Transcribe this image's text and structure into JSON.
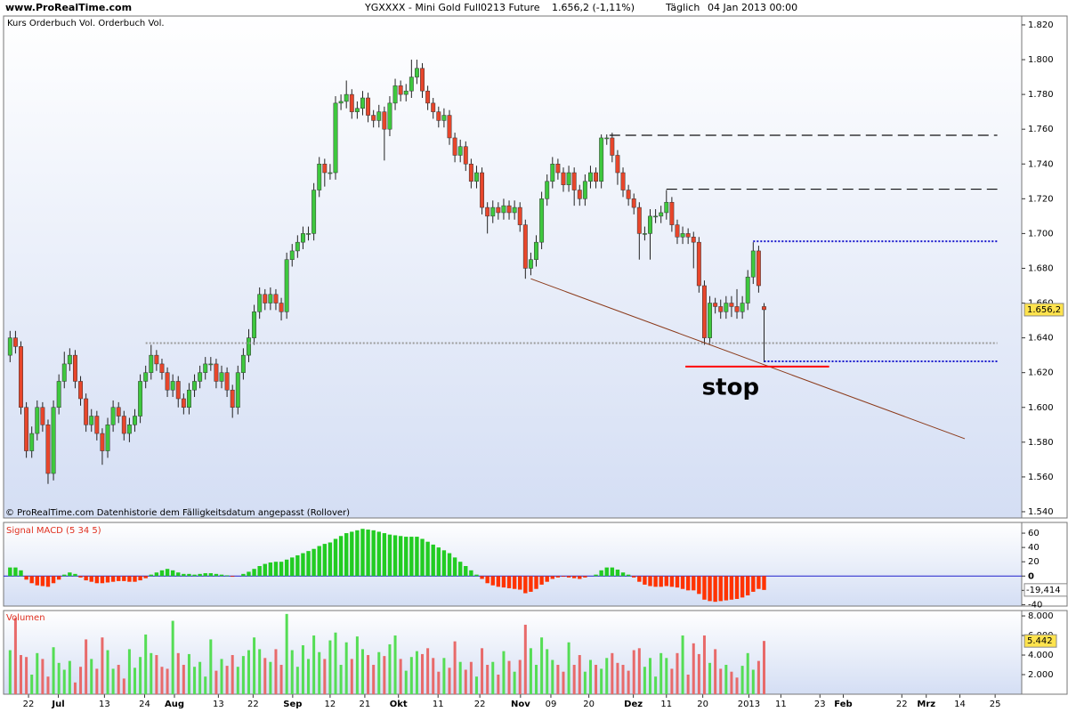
{
  "header": {
    "site": "www.ProRealTime.com",
    "title": "YGXXXX - Mini Gold Full0213 Future",
    "quote": "1.656,2 (-1,11%)",
    "period": "Täglich",
    "date": "04 Jan 2013 00:00"
  },
  "chart_data": [
    {
      "type": "candlestick",
      "label": "Kurs Orderbuch Vol. Orderbuch Vol.",
      "footnote": "© ProRealTime.com  Datenhistorie dem Fälligkeitsdatum angepasst (Rollover)",
      "up_color": "#3ec83e",
      "down_color": "#e8462b",
      "open": [
        1.63,
        1.64,
        1.635,
        1.6,
        1.575,
        1.585,
        1.6,
        1.59,
        1.562,
        1.6,
        1.615,
        1.625,
        1.63,
        1.615,
        1.605,
        1.59,
        1.595,
        1.585,
        1.575,
        1.59,
        1.6,
        1.595,
        1.585,
        1.59,
        1.595,
        1.615,
        1.62,
        1.63,
        1.625,
        1.62,
        1.61,
        1.615,
        1.605,
        1.6,
        1.61,
        1.615,
        1.62,
        1.625,
        1.625,
        1.615,
        1.62,
        1.61,
        1.6,
        1.62,
        1.63,
        1.64,
        1.655,
        1.665,
        1.66,
        1.665,
        1.66,
        1.655,
        1.685,
        1.69,
        1.695,
        1.7,
        1.7,
        1.725,
        1.74,
        1.735,
        1.735,
        1.775,
        1.776,
        1.78,
        1.77,
        1.772,
        1.778,
        1.768,
        1.765,
        1.77,
        1.76,
        1.775,
        1.785,
        1.78,
        1.782,
        1.79,
        1.795,
        1.782,
        1.775,
        1.77,
        1.765,
        1.768,
        1.755,
        1.745,
        1.75,
        1.74,
        1.73,
        1.735,
        1.715,
        1.71,
        1.715,
        1.712,
        1.716,
        1.712,
        1.715,
        1.705,
        1.68,
        1.685,
        1.695,
        1.72,
        1.73,
        1.74,
        1.735,
        1.728,
        1.735,
        1.725,
        1.72,
        1.73,
        1.735,
        1.73,
        1.755,
        1.755,
        1.745,
        1.735,
        1.725,
        1.72,
        1.715,
        1.7,
        1.7,
        1.71,
        1.71,
        1.712,
        1.718,
        1.705,
        1.698,
        1.7,
        1.698,
        1.695,
        1.67,
        1.64,
        1.66,
        1.658,
        1.655,
        1.66,
        1.658,
        1.655,
        1.66,
        1.675,
        1.69,
        1.658
      ],
      "high": [
        1.644,
        1.644,
        1.638,
        1.603,
        1.589,
        1.604,
        1.603,
        1.593,
        1.604,
        1.619,
        1.632,
        1.634,
        1.633,
        1.618,
        1.608,
        1.599,
        1.598,
        1.588,
        1.594,
        1.604,
        1.603,
        1.598,
        1.594,
        1.599,
        1.619,
        1.624,
        1.636,
        1.633,
        1.628,
        1.623,
        1.619,
        1.618,
        1.608,
        1.614,
        1.619,
        1.624,
        1.629,
        1.629,
        1.628,
        1.624,
        1.623,
        1.613,
        1.624,
        1.634,
        1.645,
        1.659,
        1.669,
        1.668,
        1.669,
        1.668,
        1.663,
        1.689,
        1.694,
        1.699,
        1.704,
        1.704,
        1.729,
        1.744,
        1.743,
        1.74,
        1.779,
        1.78,
        1.788,
        1.783,
        1.776,
        1.782,
        1.781,
        1.771,
        1.774,
        1.773,
        1.779,
        1.789,
        1.788,
        1.786,
        1.8,
        1.8,
        1.798,
        1.785,
        1.778,
        1.773,
        1.772,
        1.771,
        1.758,
        1.754,
        1.753,
        1.743,
        1.739,
        1.738,
        1.718,
        1.719,
        1.718,
        1.72,
        1.719,
        1.719,
        1.718,
        1.708,
        1.689,
        1.699,
        1.724,
        1.734,
        1.744,
        1.743,
        1.738,
        1.739,
        1.738,
        1.728,
        1.734,
        1.739,
        1.738,
        1.757,
        1.757,
        1.758,
        1.748,
        1.738,
        1.728,
        1.723,
        1.718,
        1.704,
        1.714,
        1.714,
        1.716,
        1.725,
        1.721,
        1.708,
        1.704,
        1.703,
        1.701,
        1.698,
        1.673,
        1.664,
        1.663,
        1.662,
        1.664,
        1.664,
        1.668,
        1.664,
        1.679,
        1.695,
        1.693,
        1.66
      ],
      "low": [
        1.626,
        1.631,
        1.596,
        1.571,
        1.571,
        1.581,
        1.586,
        1.556,
        1.558,
        1.596,
        1.611,
        1.621,
        1.611,
        1.601,
        1.586,
        1.586,
        1.581,
        1.567,
        1.571,
        1.586,
        1.591,
        1.581,
        1.58,
        1.586,
        1.591,
        1.611,
        1.616,
        1.621,
        1.616,
        1.606,
        1.606,
        1.6,
        1.596,
        1.596,
        1.606,
        1.611,
        1.616,
        1.621,
        1.611,
        1.611,
        1.606,
        1.594,
        1.596,
        1.616,
        1.626,
        1.636,
        1.651,
        1.656,
        1.656,
        1.656,
        1.65,
        1.651,
        1.681,
        1.686,
        1.691,
        1.696,
        1.696,
        1.721,
        1.727,
        1.731,
        1.731,
        1.771,
        1.772,
        1.766,
        1.766,
        1.768,
        1.764,
        1.761,
        1.761,
        1.742,
        1.756,
        1.771,
        1.776,
        1.776,
        1.778,
        1.786,
        1.778,
        1.771,
        1.766,
        1.761,
        1.761,
        1.751,
        1.741,
        1.741,
        1.736,
        1.726,
        1.726,
        1.711,
        1.7,
        1.706,
        1.708,
        1.708,
        1.708,
        1.708,
        1.701,
        1.674,
        1.676,
        1.681,
        1.691,
        1.716,
        1.726,
        1.731,
        1.724,
        1.724,
        1.716,
        1.716,
        1.716,
        1.726,
        1.726,
        1.726,
        1.751,
        1.741,
        1.728,
        1.721,
        1.716,
        1.711,
        1.685,
        1.696,
        1.685,
        1.706,
        1.706,
        1.708,
        1.701,
        1.694,
        1.694,
        1.694,
        1.68,
        1.666,
        1.636,
        1.636,
        1.654,
        1.651,
        1.651,
        1.652,
        1.651,
        1.651,
        1.656,
        1.671,
        1.666,
        1.626
      ],
      "close": [
        1.64,
        1.635,
        1.6,
        1.575,
        1.585,
        1.6,
        1.59,
        1.562,
        1.6,
        1.615,
        1.625,
        1.63,
        1.615,
        1.605,
        1.59,
        1.595,
        1.585,
        1.575,
        1.59,
        1.6,
        1.595,
        1.585,
        1.59,
        1.595,
        1.615,
        1.62,
        1.63,
        1.625,
        1.62,
        1.61,
        1.615,
        1.605,
        1.6,
        1.61,
        1.615,
        1.62,
        1.625,
        1.625,
        1.615,
        1.62,
        1.61,
        1.6,
        1.62,
        1.63,
        1.64,
        1.655,
        1.665,
        1.66,
        1.665,
        1.66,
        1.655,
        1.685,
        1.69,
        1.695,
        1.7,
        1.7,
        1.725,
        1.74,
        1.735,
        1.735,
        1.775,
        1.776,
        1.78,
        1.77,
        1.772,
        1.778,
        1.768,
        1.765,
        1.77,
        1.76,
        1.775,
        1.785,
        1.78,
        1.782,
        1.79,
        1.795,
        1.782,
        1.775,
        1.77,
        1.765,
        1.768,
        1.755,
        1.745,
        1.75,
        1.74,
        1.73,
        1.735,
        1.715,
        1.71,
        1.715,
        1.712,
        1.716,
        1.712,
        1.715,
        1.705,
        1.68,
        1.685,
        1.695,
        1.72,
        1.73,
        1.74,
        1.735,
        1.728,
        1.735,
        1.725,
        1.72,
        1.73,
        1.735,
        1.73,
        1.755,
        1.755,
        1.745,
        1.735,
        1.725,
        1.72,
        1.715,
        1.7,
        1.7,
        1.71,
        1.71,
        1.712,
        1.718,
        1.705,
        1.698,
        1.7,
        1.698,
        1.695,
        1.67,
        1.64,
        1.66,
        1.658,
        1.655,
        1.66,
        1.658,
        1.655,
        1.66,
        1.675,
        1.69,
        1.67,
        1.6562
      ],
      "last_label": "1.656,2",
      "xlim": [
        -1.2,
        186.5
      ],
      "xticks": [
        {
          "value": 3.4,
          "label": "22"
        },
        {
          "value": 8.9,
          "label": "Jul"
        },
        {
          "value": 17.4,
          "label": "13"
        },
        {
          "value": 24.8,
          "label": "24"
        },
        {
          "value": 30.3,
          "label": "Aug"
        },
        {
          "value": 38.4,
          "label": "13"
        },
        {
          "value": 44.8,
          "label": "22"
        },
        {
          "value": 52.1,
          "label": "Sep"
        },
        {
          "value": 59,
          "label": "12"
        },
        {
          "value": 65.4,
          "label": "21"
        },
        {
          "value": 71.6,
          "label": "Okt"
        },
        {
          "value": 78.9,
          "label": "11"
        },
        {
          "value": 86.6,
          "label": "22"
        },
        {
          "value": 94.1,
          "label": "Nov"
        },
        {
          "value": 99.7,
          "label": "09"
        },
        {
          "value": 106.7,
          "label": "20"
        },
        {
          "value": 114.9,
          "label": "Dez"
        },
        {
          "value": 121,
          "label": "11"
        },
        {
          "value": 127.7,
          "label": "20"
        },
        {
          "value": 136.2,
          "label": "2013"
        },
        {
          "value": 142.1,
          "label": "11"
        },
        {
          "value": 149.3,
          "label": "23"
        },
        {
          "value": 153.6,
          "label": "Feb"
        },
        {
          "value": 164.4,
          "label": "22"
        },
        {
          "value": 168.9,
          "label": "Mrz"
        },
        {
          "value": 175.1,
          "label": "14"
        },
        {
          "value": 181.6,
          "label": "25"
        }
      ],
      "ylim": [
        1.5364,
        1.8251
      ],
      "yticks": [
        {
          "value": 1.54,
          "label": "1.540"
        },
        {
          "value": 1.56,
          "label": "1.560"
        },
        {
          "value": 1.58,
          "label": "1.580"
        },
        {
          "value": 1.6,
          "label": "1.600"
        },
        {
          "value": 1.62,
          "label": "1.620"
        },
        {
          "value": 1.64,
          "label": "1.640"
        },
        {
          "value": 1.66,
          "label": "1.660"
        },
        {
          "value": 1.68,
          "label": "1.680"
        },
        {
          "value": 1.7,
          "label": "1.700"
        },
        {
          "value": 1.72,
          "label": "1.720"
        },
        {
          "value": 1.74,
          "label": "1.740"
        },
        {
          "value": 1.76,
          "label": "1.760"
        },
        {
          "value": 1.78,
          "label": "1.780"
        },
        {
          "value": 1.8,
          "label": "1.800"
        },
        {
          "value": 1.82,
          "label": "1.820"
        }
      ],
      "levels": [
        {
          "y": 1.7565,
          "x": [
            110.5,
            182
          ],
          "color": "#111111",
          "style": "dash"
        },
        {
          "y": 1.7255,
          "x": [
            121,
            182
          ],
          "color": "#111111",
          "style": "dash"
        },
        {
          "y": 1.6955,
          "x": [
            137,
            182
          ],
          "color": "#1a1acc",
          "style": "dot"
        },
        {
          "y": 1.6265,
          "x": [
            139,
            182
          ],
          "color": "#1a1acc",
          "style": "dot"
        },
        {
          "y": 1.637,
          "x": [
            25,
            182
          ],
          "color": "#9a9a9a",
          "style": "dot"
        }
      ],
      "trendline": {
        "x": [
          96,
          176
        ],
        "y": [
          1.674,
          1.582
        ],
        "color": "#8b3a1a"
      },
      "stop": {
        "label": "stop",
        "y": 1.6235,
        "x": [
          124.5,
          151
        ],
        "color": "#ff0000"
      }
    },
    {
      "type": "bar",
      "title": "Signal MACD (5 34 5)",
      "up_color": "#22cc22",
      "down_color": "#ff3300",
      "values": [
        12,
        12,
        8,
        -5,
        -10,
        -13,
        -14,
        -15,
        -10,
        -5,
        2,
        5,
        3,
        -2,
        -6,
        -8,
        -10,
        -10,
        -9,
        -8,
        -7,
        -7,
        -8,
        -8,
        -6,
        -3,
        2,
        5,
        8,
        10,
        8,
        5,
        3,
        3,
        2,
        3,
        4,
        4,
        3,
        2,
        1,
        -1,
        0,
        3,
        6,
        10,
        14,
        17,
        19,
        20,
        20,
        23,
        26,
        29,
        32,
        35,
        38,
        42,
        45,
        47,
        52,
        56,
        60,
        62,
        64,
        66,
        65,
        64,
        62,
        60,
        58,
        57,
        56,
        55,
        55,
        55,
        52,
        48,
        44,
        40,
        36,
        32,
        26,
        20,
        14,
        8,
        2,
        -4,
        -10,
        -13,
        -15,
        -16,
        -17,
        -18,
        -19,
        -24,
        -22,
        -18,
        -12,
        -8,
        -4,
        -2,
        -1,
        -2,
        -3,
        -4,
        -2,
        0,
        2,
        8,
        12,
        12,
        9,
        5,
        2,
        -2,
        -8,
        -12,
        -14,
        -15,
        -15,
        -14,
        -15,
        -16,
        -18,
        -20,
        -20,
        -25,
        -33,
        -35,
        -36,
        -35,
        -34,
        -33,
        -32,
        -30,
        -27,
        -22,
        -18,
        -19.414
      ],
      "last_label": "-19,414",
      "ylim": [
        -42,
        75
      ],
      "yticks": [
        -40,
        -20,
        0,
        20,
        40,
        60
      ],
      "zero_color": "#2020cc"
    },
    {
      "type": "volume",
      "title": "Volumen",
      "up_color": "#55dd55",
      "down_color": "#e86a6a",
      "values": [
        4500,
        7800,
        4000,
        3800,
        2000,
        4200,
        3600,
        1800,
        4800,
        3200,
        2500,
        3400,
        1200,
        2800,
        5600,
        3600,
        2600,
        5800,
        4500,
        2600,
        3000,
        1600,
        4600,
        2700,
        3800,
        6100,
        4200,
        4000,
        2800,
        2600,
        7500,
        4200,
        3000,
        4100,
        2800,
        3300,
        1800,
        5600,
        2400,
        3600,
        2900,
        4000,
        2800,
        3900,
        4500,
        5800,
        4600,
        3700,
        3300,
        4600,
        3000,
        8200,
        4500,
        2800,
        5000,
        3600,
        6000,
        4300,
        3600,
        5500,
        6300,
        3000,
        5300,
        3600,
        5900,
        4600,
        4000,
        3000,
        4300,
        3900,
        5100,
        6000,
        3600,
        2400,
        3800,
        4400,
        4100,
        4700,
        3700,
        2300,
        3700,
        2700,
        5400,
        3300,
        2500,
        3300,
        1800,
        4700,
        3000,
        3300,
        2000,
        4400,
        3400,
        2300,
        3500,
        7100,
        4700,
        3000,
        5800,
        4600,
        3500,
        3000,
        2300,
        5300,
        3000,
        4000,
        2300,
        3500,
        3000,
        2600,
        3700,
        4200,
        3200,
        3000,
        2400,
        4500,
        4700,
        2800,
        3700,
        1800,
        4200,
        3700,
        2600,
        4200,
        6000,
        2000,
        5200,
        4100,
        6000,
        3200,
        4600,
        2600,
        3000,
        2300,
        1700,
        2900,
        4200,
        2500,
        3400,
        5442
      ],
      "last_label": "5.442",
      "ylim": [
        0,
        8550
      ],
      "yticks": [
        {
          "value": 2000,
          "label": "2.000"
        },
        {
          "value": 4000,
          "label": "4.000"
        },
        {
          "value": 6000,
          "label": "6.000"
        },
        {
          "value": 8000,
          "label": "8.000"
        }
      ]
    }
  ]
}
